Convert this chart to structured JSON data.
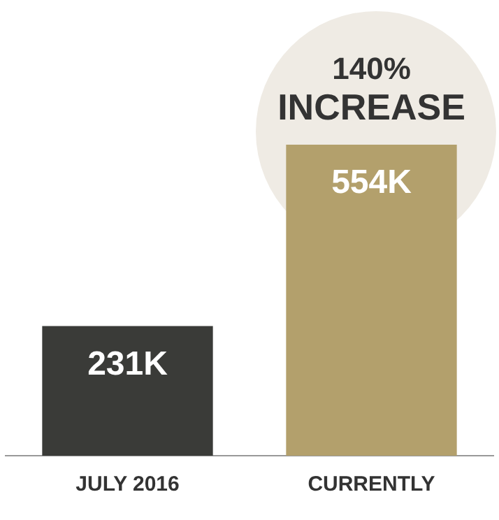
{
  "chart_data": {
    "type": "bar",
    "categories": [
      "JULY 2016",
      "CURRENTLY"
    ],
    "values": [
      231,
      554
    ],
    "colors": [
      "#3a3b38",
      "#b3a06c"
    ],
    "value_labels": [
      "231K",
      "554K"
    ],
    "annotations": [
      "140% INCREASE"
    ],
    "grid": false,
    "legend": false
  }
}
